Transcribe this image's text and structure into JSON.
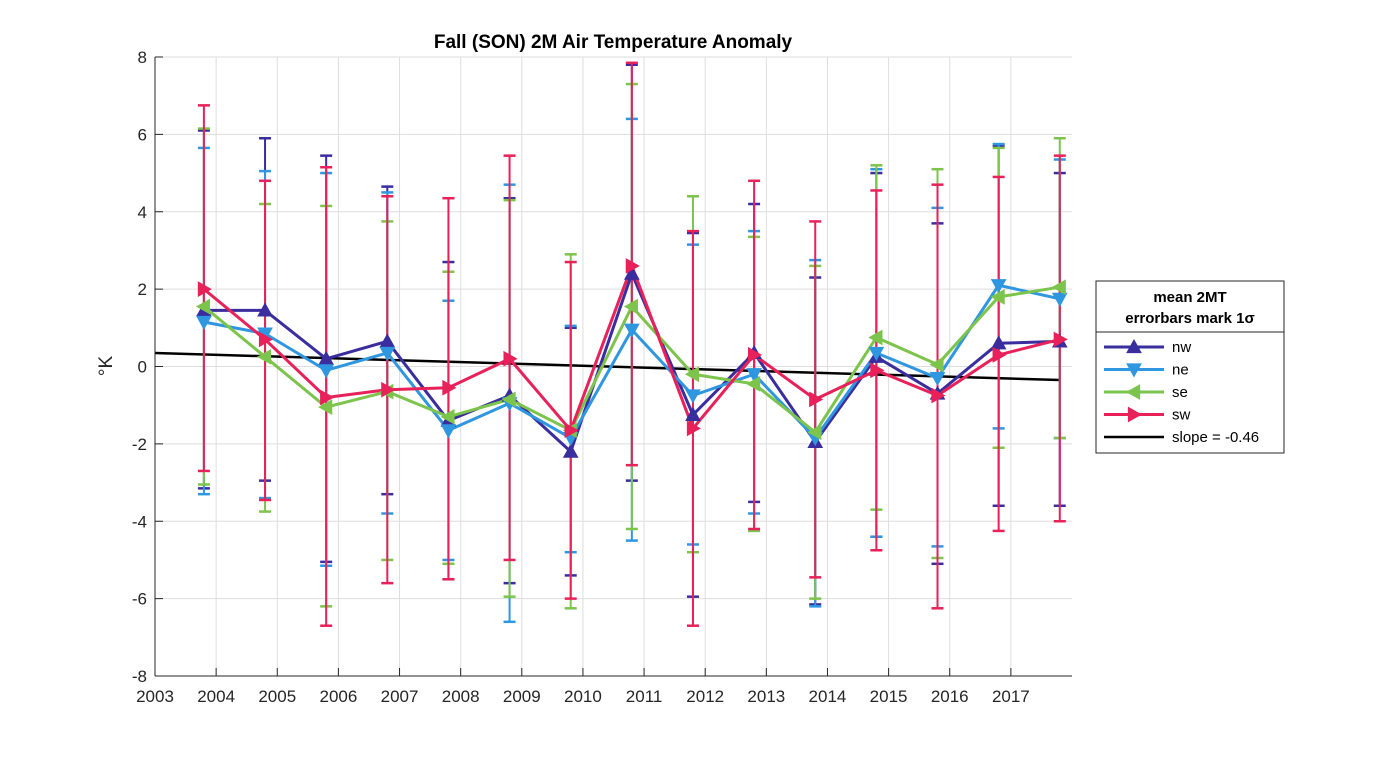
{
  "chart_data": {
    "type": "line",
    "title": "Fall (SON) 2M Air Temperature Anomaly",
    "xlabel": "",
    "ylabel": "°K",
    "xlim": [
      2003,
      2018
    ],
    "ylim": [
      -8,
      8
    ],
    "xticks": [
      2003,
      2004,
      2005,
      2006,
      2007,
      2008,
      2009,
      2010,
      2011,
      2012,
      2013,
      2014,
      2015,
      2016,
      2017
    ],
    "yticks": [
      -8,
      -6,
      -4,
      -2,
      0,
      2,
      4,
      6,
      8
    ],
    "grid": true,
    "legend_position": "outside-right",
    "legend_title": [
      "mean 2MT",
      "errorbars mark 1σ"
    ],
    "x": [
      2003.8,
      2004.8,
      2005.8,
      2006.8,
      2007.8,
      2008.8,
      2009.8,
      2010.8,
      2011.8,
      2012.8,
      2013.8,
      2014.8,
      2015.8,
      2016.8,
      2017.8
    ],
    "series": [
      {
        "name": "nw",
        "color": "#3a2d9e",
        "marker": "triangle-up",
        "values": [
          1.45,
          1.45,
          0.2,
          0.65,
          -1.4,
          -0.75,
          -2.2,
          2.4,
          -1.25,
          0.35,
          -1.95,
          0.25,
          -0.7,
          0.6,
          0.65
        ],
        "err_upper": [
          6.1,
          5.9,
          5.45,
          4.65,
          2.7,
          4.35,
          1.0,
          7.8,
          3.45,
          4.2,
          2.3,
          5.0,
          3.7,
          5.7,
          5.0
        ],
        "err_lower": [
          -3.15,
          -2.95,
          -5.05,
          -3.3,
          -5.5,
          -5.6,
          -5.4,
          -2.95,
          -5.95,
          -3.5,
          -6.15,
          -4.4,
          -5.1,
          -3.6,
          -3.6
        ]
      },
      {
        "name": "ne",
        "color": "#2f96e0",
        "marker": "triangle-down",
        "values": [
          1.15,
          0.85,
          -0.1,
          0.35,
          -1.65,
          -0.95,
          -1.85,
          0.95,
          -0.75,
          -0.2,
          -1.85,
          0.35,
          -0.3,
          2.1,
          1.75
        ],
        "err_upper": [
          5.65,
          5.05,
          5.0,
          4.5,
          1.7,
          4.7,
          1.05,
          6.4,
          3.15,
          3.5,
          2.75,
          5.1,
          4.1,
          5.75,
          5.35
        ],
        "err_lower": [
          -3.3,
          -3.4,
          -5.15,
          -3.8,
          -5.0,
          -6.6,
          -4.8,
          -4.5,
          -4.6,
          -3.8,
          -6.2,
          -4.4,
          -4.65,
          -1.6,
          -1.85
        ]
      },
      {
        "name": "se",
        "color": "#7cc44b",
        "marker": "triangle-left",
        "values": [
          1.55,
          0.25,
          -1.05,
          -0.65,
          -1.3,
          -0.85,
          -1.65,
          1.55,
          -0.2,
          -0.45,
          -1.7,
          0.75,
          0.05,
          1.8,
          2.05
        ],
        "err_upper": [
          6.15,
          4.2,
          4.15,
          3.75,
          2.45,
          4.3,
          2.9,
          7.3,
          4.4,
          3.35,
          2.6,
          5.2,
          5.1,
          5.65,
          5.9
        ],
        "err_lower": [
          -3.05,
          -3.75,
          -6.2,
          -5.0,
          -5.1,
          -5.95,
          -6.25,
          -4.2,
          -4.8,
          -4.25,
          -6.0,
          -3.7,
          -4.95,
          -2.1,
          -1.85
        ]
      },
      {
        "name": "sw",
        "color": "#e8215a",
        "marker": "triangle-right",
        "values": [
          2.0,
          0.7,
          -0.8,
          -0.6,
          -0.55,
          0.2,
          -1.65,
          2.6,
          -1.6,
          0.3,
          -0.85,
          -0.1,
          -0.75,
          0.3,
          0.7
        ],
        "err_upper": [
          6.75,
          4.8,
          5.15,
          4.4,
          4.35,
          5.45,
          2.7,
          7.85,
          3.5,
          4.8,
          3.75,
          4.55,
          4.7,
          4.9,
          5.45
        ],
        "err_lower": [
          -2.7,
          -3.45,
          -6.7,
          -5.6,
          -5.5,
          -5.0,
          -6.0,
          -2.55,
          -6.7,
          -4.2,
          -5.45,
          -4.75,
          -6.25,
          -4.25,
          -4.0
        ]
      }
    ],
    "trend": {
      "name": "slope = -0.46",
      "color": "#000000",
      "x": [
        2003,
        2017.8
      ],
      "y": [
        0.35,
        -0.35
      ]
    }
  }
}
